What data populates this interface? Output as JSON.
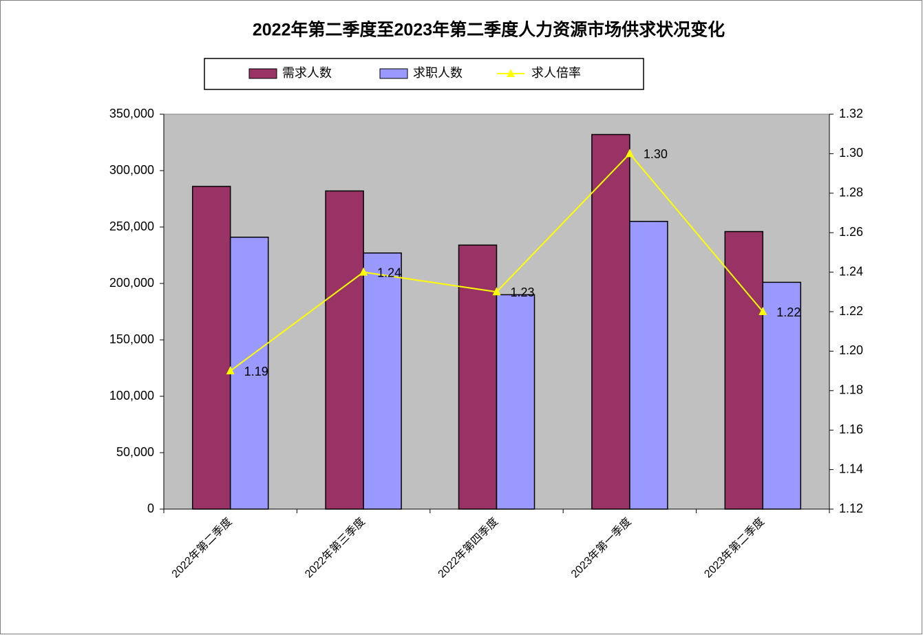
{
  "chart_data": {
    "type": "bar",
    "title": "2022年第二季度至2023年第二季度人力资源市场供求状况变化",
    "categories": [
      "2022年第二季度",
      "2022年第三季度",
      "2022年第四季度",
      "2023年第一季度",
      "2023年第二季度"
    ],
    "series": [
      {
        "name": "需求人数",
        "color": "#993366",
        "values": [
          286000,
          282000,
          234000,
          332000,
          246000
        ]
      },
      {
        "name": "求职人数",
        "color": "#9999ff",
        "values": [
          241000,
          227000,
          190000,
          255000,
          201000
        ]
      },
      {
        "name": "求人倍率",
        "color": "#ffff00",
        "type": "line",
        "axis": "y2",
        "values": [
          1.19,
          1.24,
          1.23,
          1.3,
          1.22
        ],
        "value_labels": [
          "1.19",
          "1.24",
          "1.23",
          "1.30",
          "1.22"
        ]
      }
    ],
    "ylim": [
      0,
      350000
    ],
    "yticks": [
      0,
      {
        "value": 50000,
        "label": "50,000"
      },
      {
        "value": 100000,
        "label": "100,000"
      },
      {
        "value": 150000,
        "label": "150,000"
      },
      {
        "value": 200000,
        "label": "200,000"
      },
      {
        "value": 250000,
        "label": "250,000"
      },
      {
        "value": 300000,
        "label": "300,000"
      },
      {
        "value": 350000,
        "label": "350,000"
      }
    ],
    "y2lim": [
      1.12,
      1.32
    ],
    "y2ticks": [
      1.12,
      1.14,
      1.16,
      1.18,
      {
        "value": 1.2,
        "label": "1.20"
      },
      1.22,
      1.24,
      1.26,
      1.28,
      {
        "value": 1.3,
        "label": "1.30"
      },
      1.32
    ],
    "legend": "top",
    "plot_background": "#c0c0c0"
  }
}
